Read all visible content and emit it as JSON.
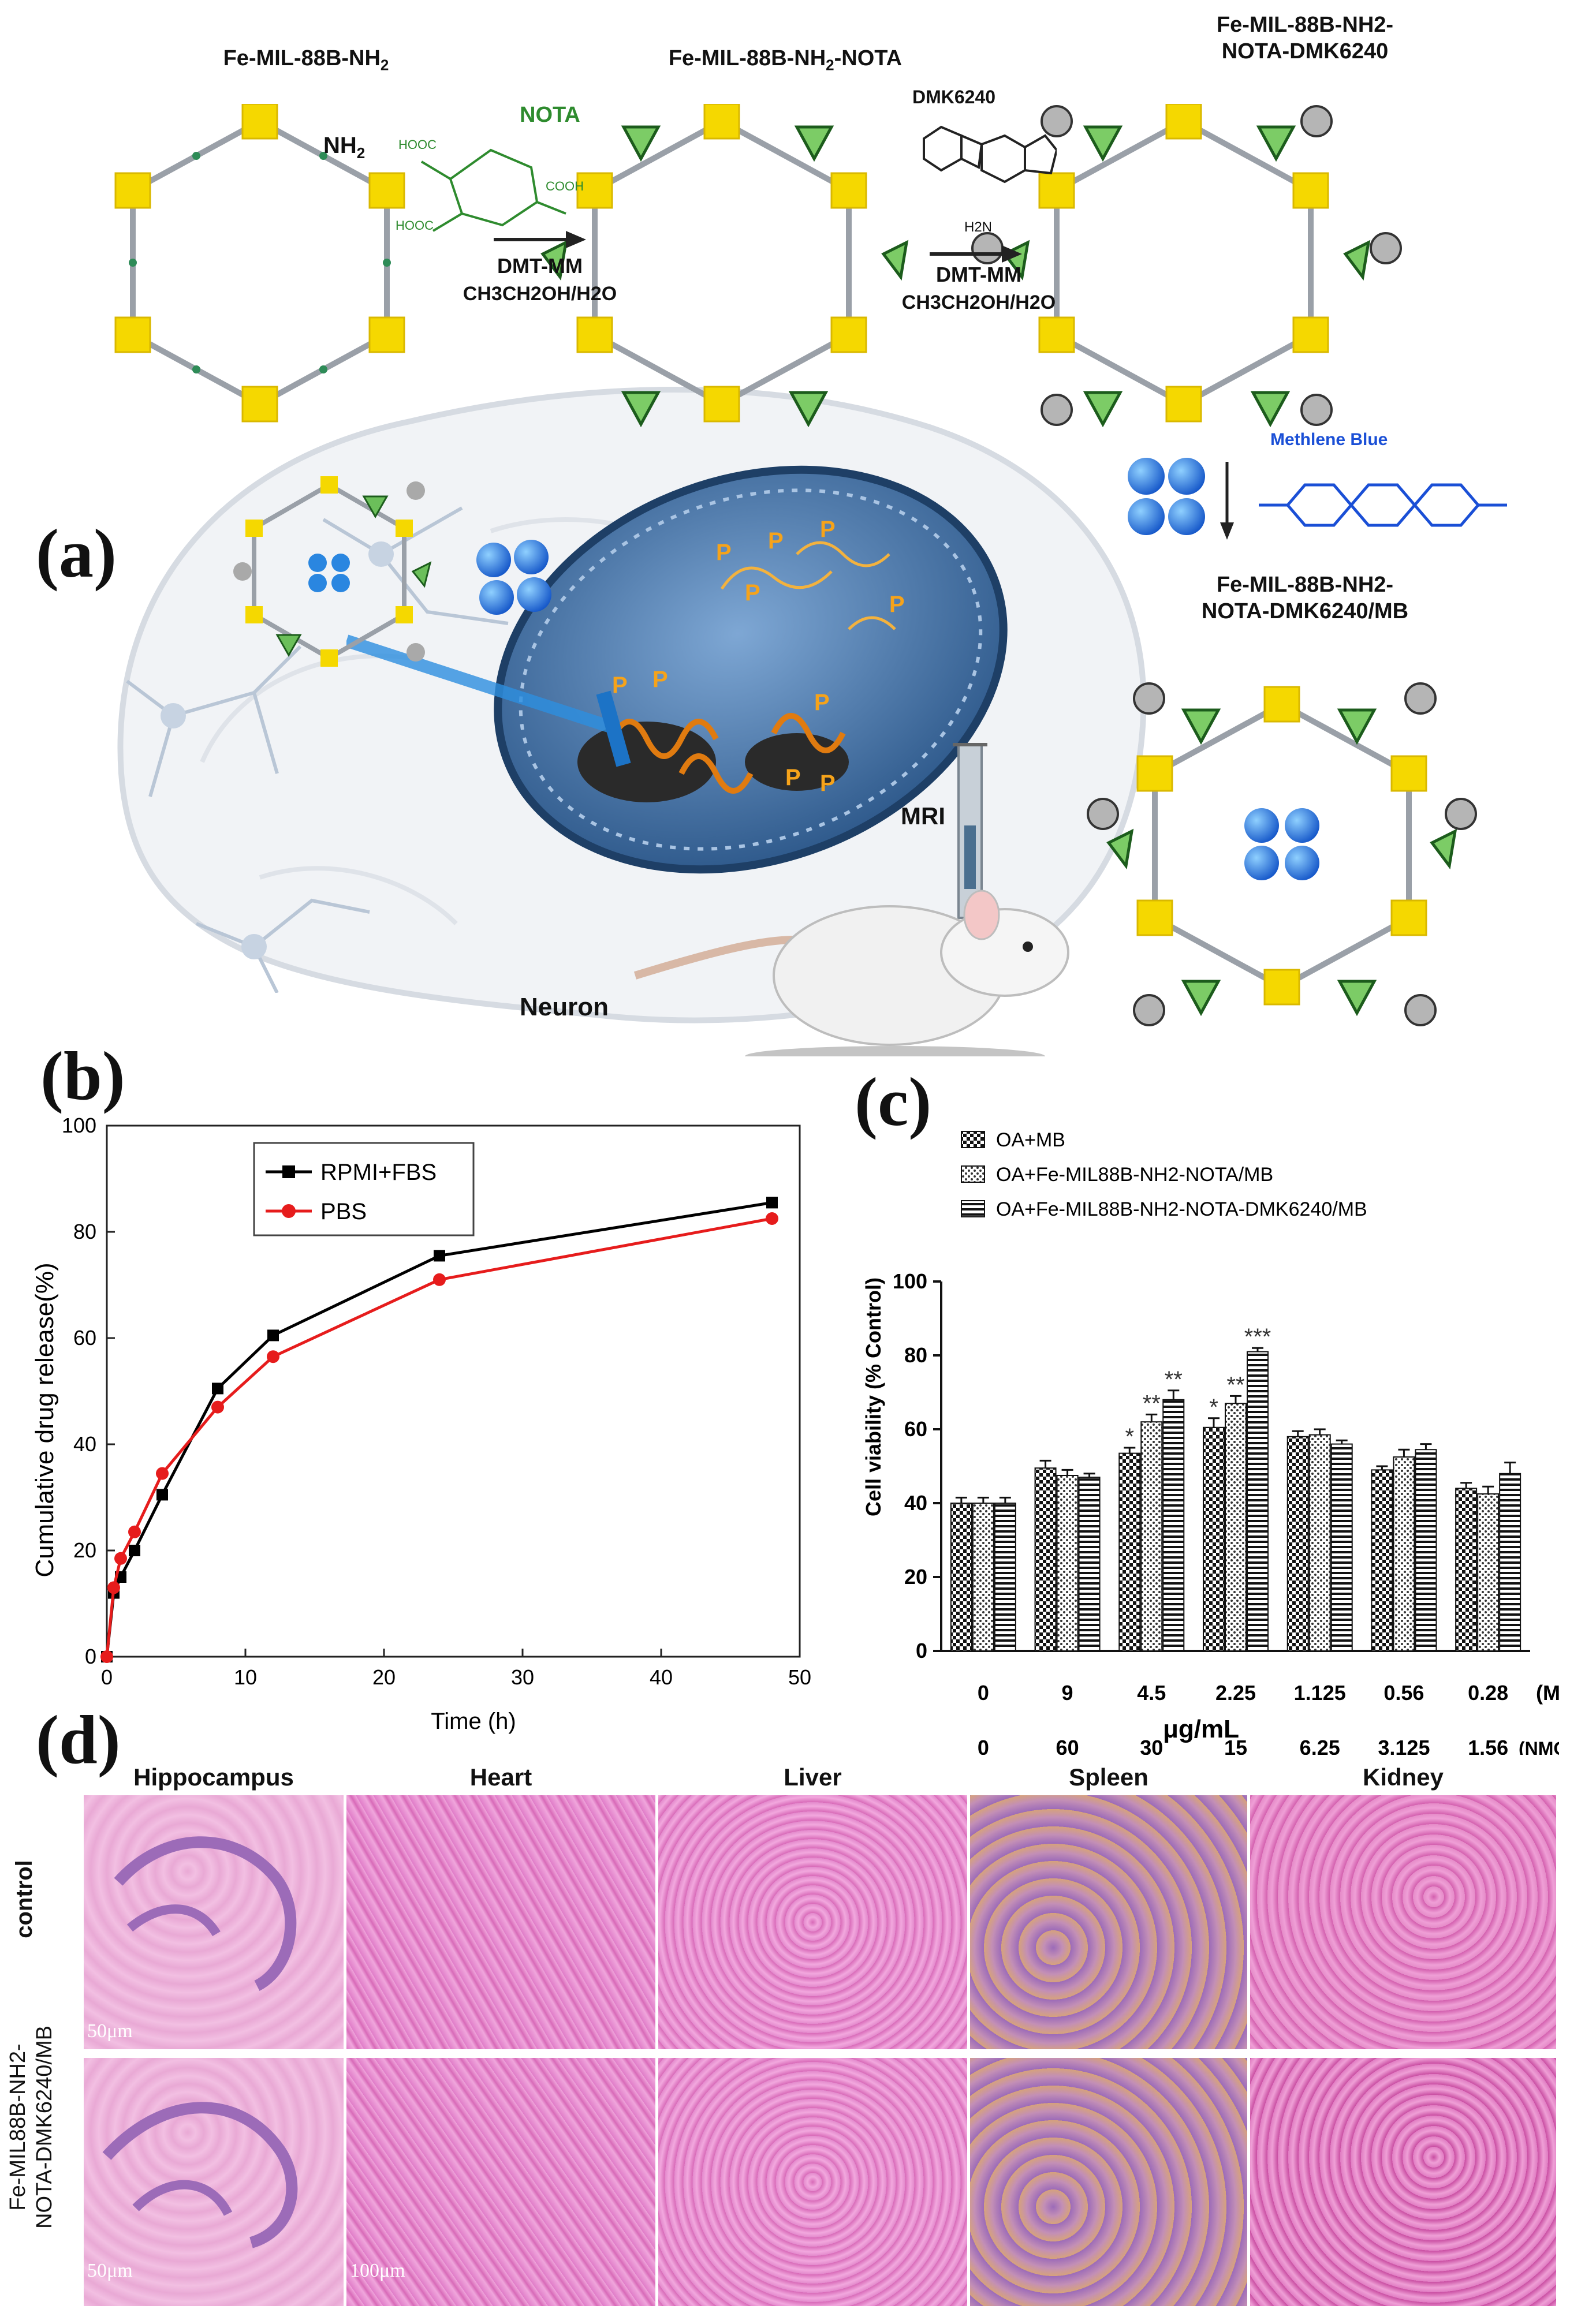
{
  "panels": {
    "a": "(a)",
    "b": "(b)",
    "c": "(c)",
    "d": "(d)"
  },
  "panel_a": {
    "mof1": "Fe-MIL-88B-NH",
    "mof1_sub": "2",
    "nh2": "NH",
    "nh2_sub": "2",
    "nota_label": "NOTA",
    "hooc_1": "HOOC",
    "hooc_2": "HOOC",
    "cooh": "COOH",
    "step1_reagent": "DMT-MM",
    "step1_solvent": "CH3CH2OH/H2O",
    "mof2": "Fe-MIL-88B-NH",
    "mof2_sub": "2",
    "mof2_suffix": "-NOTA",
    "dmk_label": "DMK6240",
    "h2n": "H2N",
    "step2_reagent": "DMT-MM",
    "step2_solvent": "CH3CH2OH/H2O",
    "mof3_line1": "Fe-MIL-88B-NH2-",
    "mof3_line2": "NOTA-DMK6240",
    "mb_label": "Methlene Blue",
    "mof4_line1": "Fe-MIL-88B-NH2-",
    "mof4_line2": "NOTA-DMK6240/MB",
    "mri": "MRI",
    "neuron": "Neuron",
    "p_marks": [
      "P",
      "P",
      "P",
      "P",
      "P",
      "P",
      "P",
      "P",
      "P",
      "P"
    ],
    "colors": {
      "accent_green": "#2e8b2e",
      "mb_blue": "#1a4fd6",
      "gold": "#f5d800"
    }
  },
  "chart_data": [
    {
      "type": "line",
      "panel": "b",
      "ylabel": "Cumulative drug release(%)",
      "xlabel": "Time (h)",
      "xlim": [
        0,
        50
      ],
      "ylim": [
        0,
        100
      ],
      "xticks": [
        0,
        10,
        20,
        30,
        40,
        50
      ],
      "yticks": [
        0,
        20,
        40,
        60,
        80,
        100
      ],
      "series": [
        {
          "name": "RPMI+FBS",
          "color": "#000000",
          "marker": "square",
          "x": [
            0,
            0.5,
            1,
            2,
            4,
            8,
            12,
            24,
            48
          ],
          "y": [
            0,
            12,
            15,
            20,
            30.5,
            50.5,
            60.5,
            75.5,
            85.5
          ]
        },
        {
          "name": "PBS",
          "color": "#e61c1c",
          "marker": "circle",
          "x": [
            0,
            0.5,
            1,
            2,
            4,
            8,
            12,
            24,
            48
          ],
          "y": [
            0,
            13,
            18.5,
            23.5,
            34.5,
            47,
            56.5,
            71,
            82.5
          ]
        }
      ]
    },
    {
      "type": "bar",
      "panel": "c",
      "ylabel": "Cell viability (% Control)",
      "xlabel": "μg/mL",
      "ylim": [
        0,
        100
      ],
      "yticks": [
        0,
        20,
        40,
        60,
        80,
        100
      ],
      "categories_mb": [
        "0",
        "9",
        "4.5",
        "2.25",
        "1.125",
        "0.56",
        "0.28"
      ],
      "categories_nmofs": [
        "0",
        "60",
        "30",
        "15",
        "6.25",
        "3.125",
        "1.56"
      ],
      "row_label_mb": "(MB)",
      "row_label_nmofs": "(NMOFs)",
      "series": [
        {
          "name": "OA+MB",
          "pattern": "check",
          "values": [
            40,
            49.5,
            53.5,
            60.5,
            58,
            49,
            44
          ],
          "errors": [
            1.5,
            2,
            1.5,
            2.5,
            1.5,
            1,
            1.5
          ],
          "stars": [
            "",
            "",
            "*",
            "*",
            "",
            "",
            ""
          ]
        },
        {
          "name": "OA+Fe-MIL88B-NH2-NOTA/MB",
          "pattern": "dots",
          "values": [
            40,
            47.5,
            62,
            67,
            58.5,
            52.5,
            42.5
          ],
          "errors": [
            1.5,
            1.5,
            2,
            2,
            1.5,
            2,
            2
          ],
          "stars": [
            "",
            "",
            "**",
            "**",
            "",
            "",
            ""
          ]
        },
        {
          "name": "OA+Fe-MIL88B-NH2-NOTA-DMK6240/MB",
          "pattern": "stripes",
          "values": [
            40,
            47,
            68,
            81,
            56,
            54.5,
            48
          ],
          "errors": [
            1.5,
            1,
            2.5,
            1,
            1,
            1.5,
            3
          ],
          "stars": [
            "",
            "",
            "**",
            "***",
            "",
            "",
            ""
          ]
        }
      ]
    }
  ],
  "panel_d": {
    "columns": [
      "Hippocampus",
      "Heart",
      "Liver",
      "Spleen",
      "Kidney"
    ],
    "row_control": "control",
    "row_treated_line1": "Fe-MIL88B-NH2-",
    "row_treated_line2": "NOTA-DMK6240/MB",
    "scale_1": "50μm",
    "scale_2": "50μm",
    "scale_3": "100μm"
  }
}
